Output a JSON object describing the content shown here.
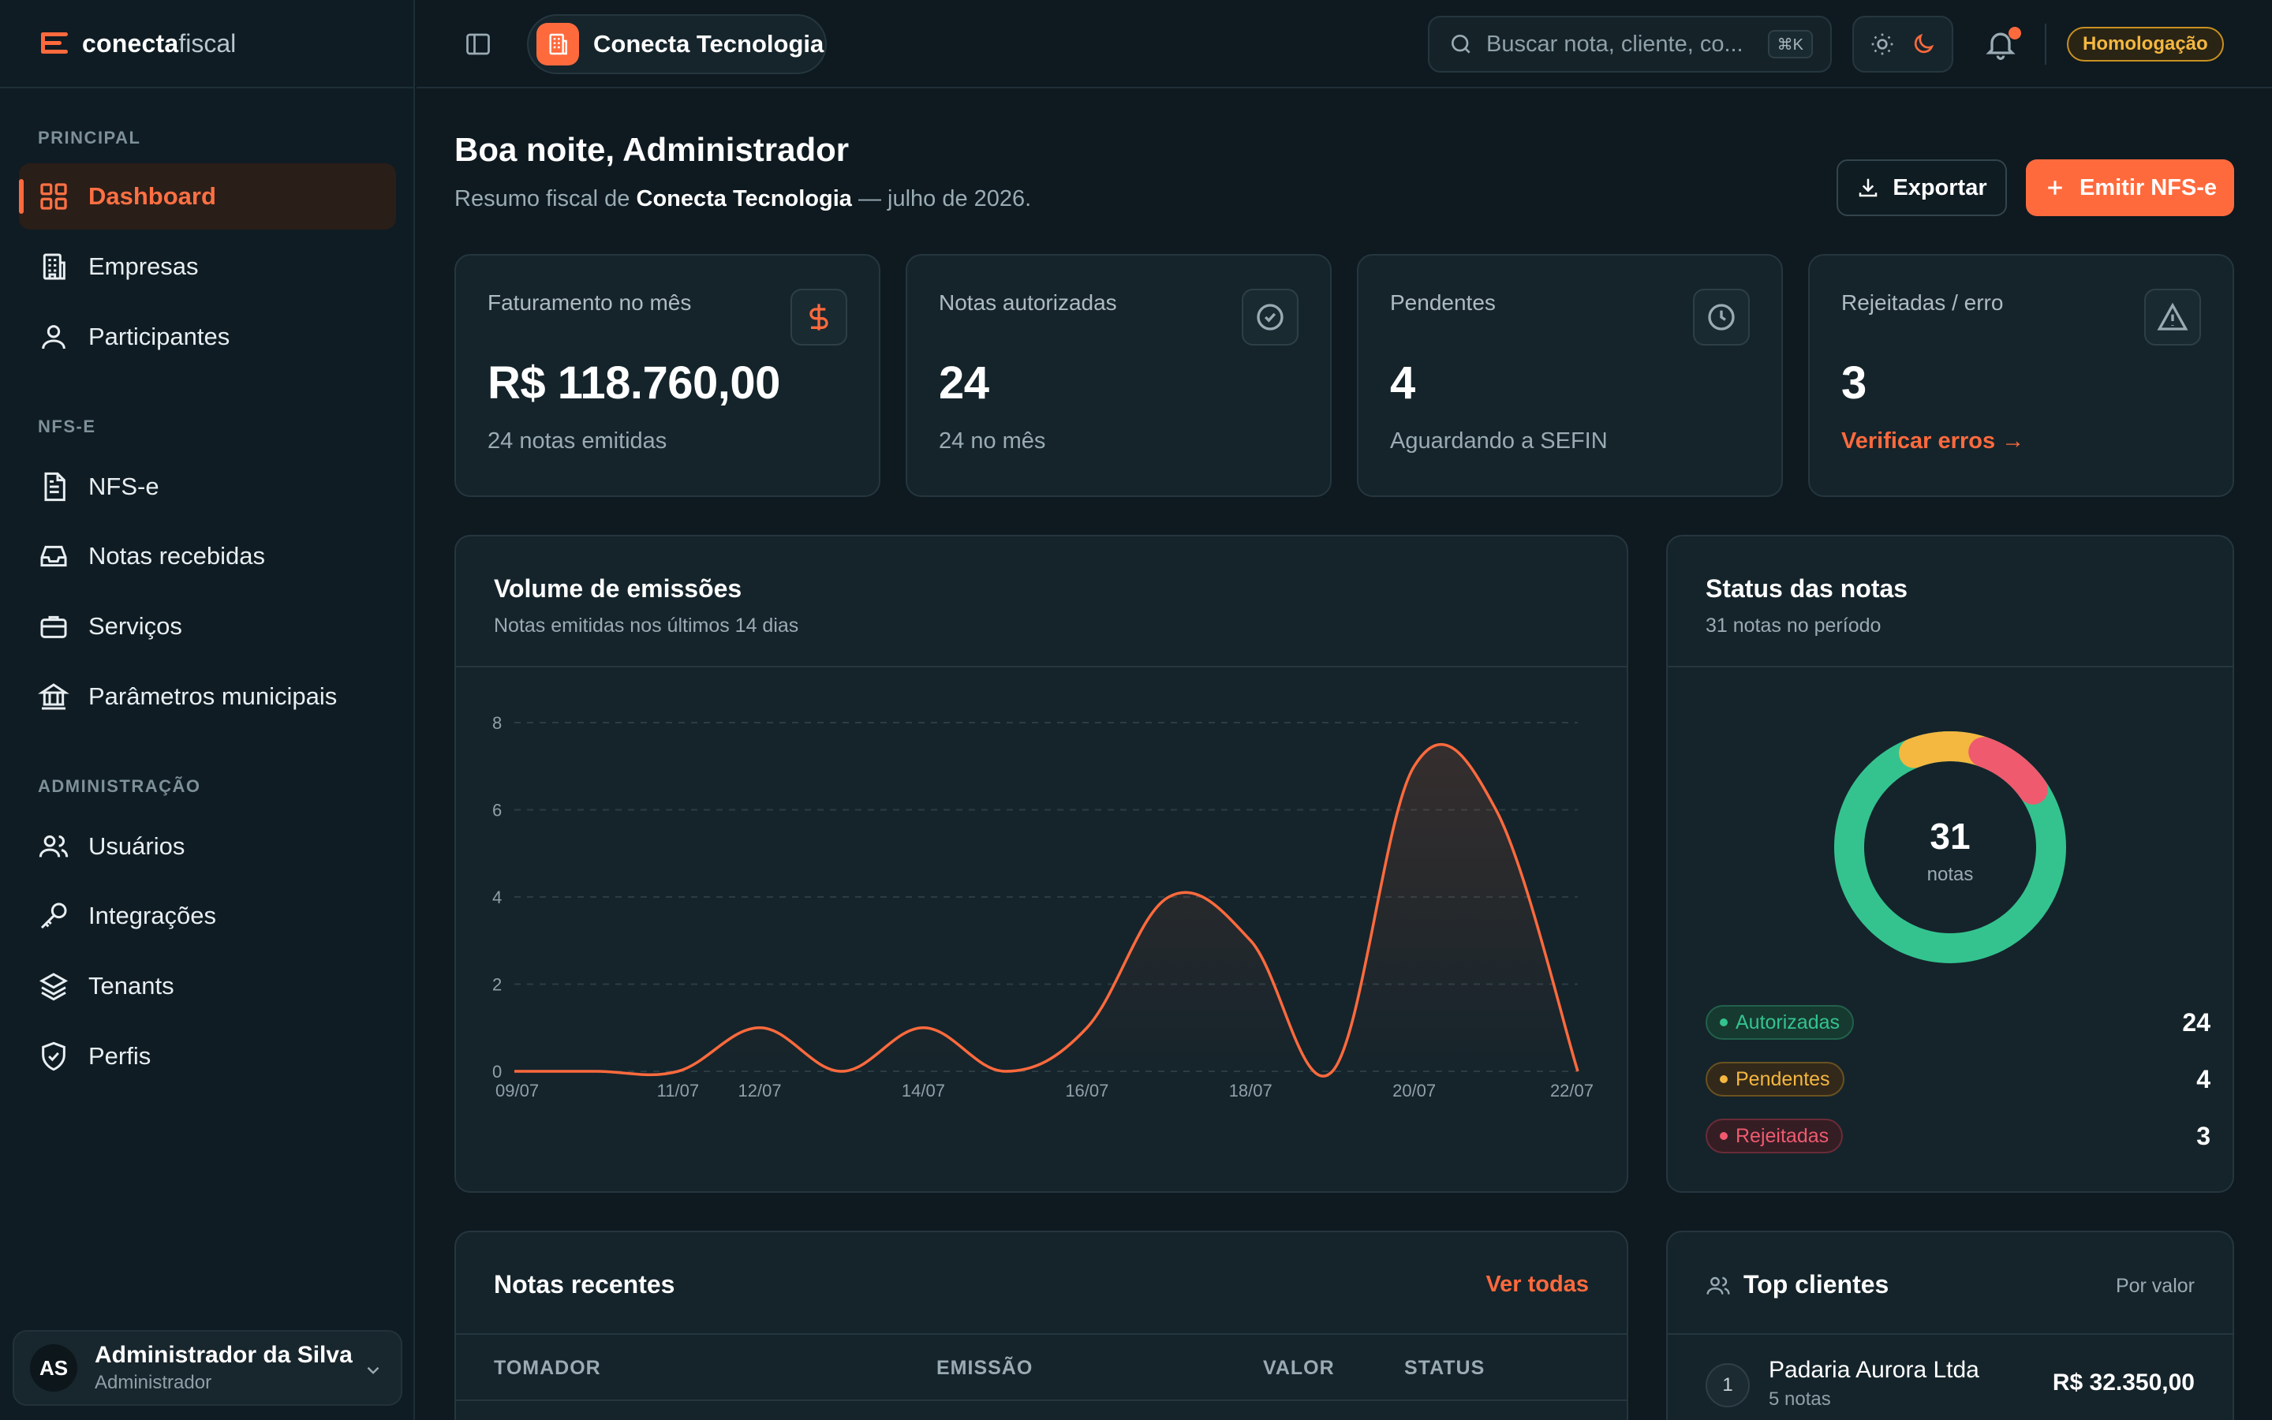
{
  "brand": {
    "name_bold": "conecta",
    "name_light": "fiscal"
  },
  "sidebar": {
    "sections": [
      "PRINCIPAL",
      "NFS-E",
      "ADMINISTRAÇÃO"
    ],
    "items": [
      {
        "label": "Dashboard",
        "icon": "grid-icon",
        "active": true
      },
      {
        "label": "Empresas",
        "icon": "building-icon"
      },
      {
        "label": "Participantes",
        "icon": "user-icon"
      },
      {
        "label": "NFS-e",
        "icon": "document-icon"
      },
      {
        "label": "Notas recebidas",
        "icon": "inbox-icon"
      },
      {
        "label": "Serviços",
        "icon": "briefcase-icon"
      },
      {
        "label": "Parâmetros municipais",
        "icon": "landmark-icon"
      },
      {
        "label": "Usuários",
        "icon": "users-icon"
      },
      {
        "label": "Integrações",
        "icon": "key-icon"
      },
      {
        "label": "Tenants",
        "icon": "layers-icon"
      },
      {
        "label": "Perfis",
        "icon": "shield-icon"
      }
    ],
    "user": {
      "initials": "AS",
      "name": "Administrador da Silva",
      "role": "Administrador"
    }
  },
  "topbar": {
    "company": "Conecta Tecnologia",
    "search_placeholder": "Buscar nota, cliente, co...",
    "shortcut": "⌘K",
    "environment": "Homologação"
  },
  "header": {
    "greeting": "Boa noite, Administrador",
    "summary_prefix": "Resumo fiscal de",
    "summary_company": "Conecta Tecnologia",
    "summary_suffix": "— julho de 2026.",
    "export_label": "Exportar",
    "emit_label": "Emitir NFS-e"
  },
  "stats": [
    {
      "title": "Faturamento no mês",
      "value": "R$ 118.760,00",
      "sub": "24 notas emitidas",
      "icon": "dollar-icon"
    },
    {
      "title": "Notas autorizadas",
      "value": "24",
      "sub": "24 no mês",
      "icon": "check-circle-icon"
    },
    {
      "title": "Pendentes",
      "value": "4",
      "sub": "Aguardando a SEFIN",
      "icon": "clock-icon"
    },
    {
      "title": "Rejeitadas / erro",
      "value": "3",
      "sub": "Verificar erros →",
      "icon": "alert-triangle-icon"
    }
  ],
  "volume_card": {
    "title": "Volume de emissões",
    "subtitle": "Notas emitidas nos últimos 14 dias"
  },
  "status_card": {
    "title": "Status das notas",
    "subtitle": "31 notas no período",
    "center_value": "31",
    "center_label": "notas",
    "legend": [
      {
        "label": "Autorizadas",
        "count": "24",
        "color": "#34c38f"
      },
      {
        "label": "Pendentes",
        "count": "4",
        "color": "#f4b740"
      },
      {
        "label": "Rejeitadas",
        "count": "3",
        "color": "#ef5a6f"
      }
    ]
  },
  "recent_card": {
    "title": "Notas recentes",
    "link": "Ver todas",
    "columns": [
      "TOMADOR",
      "EMISSÃO",
      "VALOR",
      "STATUS"
    ]
  },
  "clients_card": {
    "title": "Top clientes",
    "sort_label": "Por valor",
    "items": [
      {
        "rank": "1",
        "name": "Padaria Aurora Ltda",
        "notes": "5 notas",
        "value": "R$ 32.350,00"
      }
    ]
  },
  "chart_data": {
    "type": "area",
    "x": [
      "09/07",
      "10/07",
      "11/07",
      "12/07",
      "13/07",
      "14/07",
      "15/07",
      "16/07",
      "17/07",
      "18/07",
      "19/07",
      "20/07",
      "21/07",
      "22/07"
    ],
    "xticks": [
      "09/07",
      "11/07",
      "12/07",
      "14/07",
      "16/07",
      "18/07",
      "20/07",
      "22/07"
    ],
    "values": [
      0,
      0,
      0,
      1,
      0,
      1,
      0,
      1,
      4,
      3,
      0,
      7,
      6,
      0
    ],
    "yticks": [
      "0",
      "2",
      "4",
      "6",
      "8"
    ],
    "ylim": [
      0,
      8
    ],
    "color": "#ff6a3d",
    "grid": true
  }
}
